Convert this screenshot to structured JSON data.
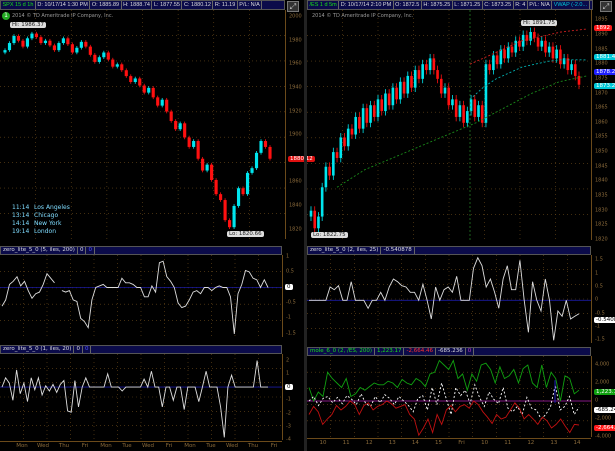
{
  "left": {
    "header": [
      "SPX 15 d 1h",
      "D: 10/17/14 1:30 PM",
      "O: 1885.89",
      "H: 1888.74",
      "L: 1877.55",
      "C: 1880.12",
      "R: 11.19",
      "P/L: N/A"
    ],
    "copyright": "2014 © TD Ameritrade IP Company, Inc.",
    "hi_label": "Hi: 1986.37",
    "lo_label": "Lo: 1820.66",
    "timezones": [
      {
        "time": "11:14",
        "city": "Los Angeles"
      },
      {
        "time": "13:14",
        "city": "Chicago"
      },
      {
        "time": "14:14",
        "city": "New York"
      },
      {
        "time": "19:14",
        "city": "London"
      }
    ],
    "price_ticks": [
      "2000",
      "1980",
      "1960",
      "1940",
      "1920",
      "1900",
      "1860",
      "1840",
      "1820"
    ],
    "last_price": "1880.12",
    "study1": {
      "header": [
        "zero_lite_5_0 (5, iles, 200)",
        "0",
        "0"
      ],
      "ticks": [
        "1",
        "0.5",
        "-0.5",
        "-1",
        "-1.5"
      ],
      "value": "0"
    },
    "study2": {
      "header": [
        "zero_lite_5_0 (1, iles, 20)",
        "0",
        "0"
      ],
      "ticks": [
        "2",
        "1",
        "-1",
        "-2",
        "-3",
        "-4"
      ],
      "value": "0"
    },
    "x_labels": [
      "Mon",
      "Wed",
      "Thu",
      "Fri",
      "Mon",
      "Tue",
      "Wed",
      "Fri",
      "Mon",
      "Tue",
      "Wed",
      "Thu",
      "Fri"
    ]
  },
  "right": {
    "header": [
      "/ES 1 d 5m",
      "D: 10/17/14 2:10 PM",
      "O: 1872.5",
      "H: 1875.25",
      "L: 1871.25",
      "C: 1873.25",
      "R: 4",
      "P/L: N/A",
      "VWAP (-2.0..."
    ],
    "copyright": "2014 © TD Ameritrade IP Company, Inc.",
    "hi_label": "Hi: 1891.75",
    "lo_label": "Lo: 1822.75",
    "price_ticks": [
      "1895",
      "1890",
      "1885",
      "1880",
      "1875",
      "1870",
      "1865",
      "1860",
      "1855",
      "1850",
      "1845",
      "1840",
      "1835",
      "1830",
      "1825",
      "1820"
    ],
    "price_labels": [
      {
        "text": "1892",
        "color": "#ff1a1a"
      },
      {
        "text": "1881.48",
        "color": "#00c8d8"
      },
      {
        "text": "1878.25",
        "color": "#2020ff"
      },
      {
        "text": "1873.25",
        "color": "#00c8d8"
      }
    ],
    "study1": {
      "header": [
        "zero_lite_5_0 (2, iles, 25)",
        "-0.540878",
        ""
      ],
      "ticks": [
        "1.5",
        "1",
        "0.5",
        "0",
        "-0.5",
        "-1",
        "-1.5"
      ],
      "value": "-0.5408"
    },
    "study2": {
      "header": [
        "mole_6_0 (2, /ES, 200)",
        "1,223.17",
        "-2,664.46",
        "-685.236",
        "0"
      ],
      "ticks": [
        "4,000",
        "2,000",
        "0",
        "-2,000",
        "-4,000"
      ],
      "values": [
        {
          "text": "1,223.17",
          "color": "#10a010"
        },
        {
          "text": "-685.24",
          "color": "#ffffff"
        },
        {
          "text": "-2,664.5",
          "color": "#ff1a1a"
        }
      ]
    },
    "x_labels": [
      "10",
      "11",
      "12",
      "13",
      "14",
      "15",
      "Fri",
      "10",
      "11",
      "12",
      "13",
      "14"
    ]
  },
  "colors": {
    "up": "#00e5ee",
    "down": "#ff1010",
    "header_bg": "#0b0b4a",
    "zero_line": "#1a1aa0",
    "mole_zero": "#b020b0",
    "grid": "#6b4a1a"
  },
  "chart_data": [
    {
      "type": "candlestick",
      "title": "SPX 15 d 1h",
      "ylim": [
        1812,
        2006
      ],
      "closes": [
        1972,
        1978,
        1984,
        1980,
        1975,
        1982,
        1986,
        1983,
        1978,
        1980,
        1976,
        1972,
        1978,
        1982,
        1977,
        1970,
        1974,
        1979,
        1975,
        1968,
        1962,
        1966,
        1970,
        1964,
        1958,
        1960,
        1955,
        1950,
        1945,
        1948,
        1942,
        1936,
        1940,
        1932,
        1925,
        1930,
        1920,
        1912,
        1905,
        1910,
        1898,
        1890,
        1895,
        1880,
        1870,
        1875,
        1862,
        1850,
        1845,
        1828,
        1822,
        1840,
        1855,
        1850,
        1868,
        1872,
        1885,
        1895,
        1890,
        1880
      ]
    },
    {
      "type": "line",
      "title": "zero_lite_5_0 (5, iles, 200)",
      "ylim": [
        -1.6,
        1.05
      ],
      "values": [
        -0.6,
        -0.4,
        0.1,
        0.2,
        0.35,
        0.05,
        0.2,
        -0.1,
        -0.35,
        -0.2,
        -0.15,
        0.1,
        0.45,
        0.3,
        0.15,
        null,
        -0.1,
        -0.15,
        -0.1,
        -0.4,
        -0.45,
        -1.0,
        -1.1,
        -1.3,
        -0.4,
        0,
        0.05,
        0.1,
        0,
        0,
        0,
        0,
        0.3,
        0.15,
        0.15,
        0.1,
        0,
        0,
        -0.3,
        -0.3,
        0.05,
        -0.15,
        0.8,
        0.85,
        0.35,
        0.2,
        0,
        -0.5,
        -0.65,
        -0.6,
        -0.4,
        -0.15,
        -0.1,
        -0.2,
        0,
        0,
        -0.1,
        0,
        0.05,
        0,
        0,
        -0.3,
        -1.5,
        -0.2,
        0.1,
        0.55,
        0.5,
        0.3,
        0.25,
        0,
        0.25,
        0
      ]
    },
    {
      "type": "line",
      "title": "zero_lite_5_0 (1, iles, 20)",
      "ylim": [
        -4,
        2.5
      ],
      "values": [
        0,
        0.7,
        0.3,
        -1,
        1.3,
        -0.5,
        0.3,
        -1.1,
        0.7,
        -0.2,
        0.7,
        -0.6,
        0.1,
        -0.3,
        0.2,
        -0.4,
        0.2,
        0.5,
        -1.8,
        -1.9,
        0.5,
        -1.5,
        0,
        0.7,
        0,
        0,
        0,
        0,
        0,
        1,
        0,
        0,
        0,
        -0.3,
        0,
        0,
        0,
        0,
        0,
        0.6,
        0,
        1.2,
        0,
        0,
        -1.5,
        0,
        0,
        -1,
        0,
        0,
        -1.7,
        0,
        0,
        0,
        -1.1,
        0,
        1.2,
        0,
        0,
        0,
        -1.5,
        -3.8,
        0,
        0.9,
        0,
        0,
        0,
        0,
        0,
        0,
        2,
        0,
        0,
        0
      ]
    },
    {
      "type": "candlestick",
      "title": "/ES 1 d 5m",
      "ylim": [
        1820,
        1898.5
      ],
      "closes": [
        1830,
        1824,
        1828,
        1838,
        1845,
        1842,
        1850,
        1848,
        1855,
        1852,
        1858,
        1856,
        1862,
        1858,
        1865,
        1860,
        1866,
        1862,
        1868,
        1864,
        1870,
        1866,
        1872,
        1868,
        1874,
        1870,
        1876,
        1872,
        1878,
        1875,
        1880,
        1878,
        1882,
        1878,
        1875,
        1870,
        1872,
        1866,
        1868,
        1862,
        1866,
        1860,
        1864,
        1868,
        1862,
        1866,
        1860,
        1880,
        1878,
        1883,
        1880,
        1885,
        1882,
        1886,
        1884,
        1888,
        1886,
        1890,
        1888,
        1891,
        1889,
        1886,
        1888,
        1884,
        1886,
        1882,
        1885,
        1880,
        1882,
        1878,
        1880,
        1876,
        1873
      ],
      "vwap_upper": [
        1880,
        1882,
        1884,
        1886,
        1888,
        1889,
        1890,
        1891,
        1891.5,
        1892
      ],
      "vwap_mid": [
        1868,
        1872,
        1875,
        1877,
        1879,
        1880,
        1881,
        1881.5,
        1881.5,
        1881.48
      ],
      "vwap_lower": [
        1838,
        1844,
        1848,
        1852,
        1856,
        1860,
        1865,
        1870,
        1874,
        1876
      ]
    },
    {
      "type": "line",
      "title": "zero_lite_5_0 (2, iles, 25)",
      "ylim": [
        -1.6,
        1.7
      ],
      "values": [
        0,
        0,
        0,
        0,
        0,
        0.5,
        0.4,
        0.55,
        0,
        0,
        0.7,
        0,
        0,
        0,
        -0.3,
        0,
        0,
        0.3,
        0,
        0.5,
        0.8,
        0.7,
        0.55,
        0.5,
        0.3,
        0.3,
        0,
        0.6,
        0,
        -0.7,
        0.5,
        0,
        0.4,
        0.5,
        0.3,
        0.9,
        0,
        0,
        0,
        1.2,
        1.6,
        1.3,
        0.5,
        0.8,
        0.3,
        -0.3,
        0.8,
        1.3,
        0.4,
        0.4,
        1.5,
        0,
        -1.2,
        0.7,
        0,
        -0.4,
        0.8,
        0,
        -1.5,
        -0.4,
        -0.6,
        0,
        -0.7,
        -0.6,
        -0.5
      ]
    },
    {
      "type": "line",
      "title": "mole_6_0 (2, /ES, 200)",
      "ylim": [
        -4000,
        5000
      ],
      "series": [
        {
          "color": "#10a010",
          "values": [
            1500,
            0,
            1000,
            500,
            3200,
            2500,
            2000,
            1500,
            2500,
            500,
            800,
            1500,
            1200,
            1600,
            2000,
            1800,
            1800,
            2200,
            2000,
            1500,
            2400,
            2000,
            1800,
            2500,
            2200,
            1600,
            3000,
            3200,
            4500,
            4000,
            3500,
            4500,
            2500,
            3000,
            1200,
            3000,
            2200,
            4000,
            4200,
            3500,
            2000,
            3800,
            2500,
            2800,
            3500,
            2000,
            3600,
            4000,
            2000,
            1500,
            4000,
            1500,
            3200,
            2500,
            0,
            2800,
            2500,
            800,
            1200
          ]
        },
        {
          "color": "#ffffff",
          "dash": true,
          "values": [
            0,
            500,
            -500,
            300,
            500,
            -200,
            400,
            -300,
            600,
            200,
            -400,
            800,
            -300,
            -600,
            500,
            -200,
            700,
            300,
            -400,
            500,
            0,
            -500,
            -1200,
            300,
            600,
            -1000,
            1500,
            -400,
            2000,
            200,
            -1500,
            1500,
            600,
            1200,
            -300,
            1800,
            400,
            -600,
            1000,
            200,
            -300,
            1500,
            -800,
            -1200,
            -600,
            -1500,
            400,
            -800,
            -1000,
            -2000,
            -1500,
            -600,
            1800,
            -1000,
            -600,
            500,
            -1500,
            -685
          ]
        },
        {
          "color": "#c01010",
          "values": [
            -1500,
            -600,
            -1200,
            -2600,
            -2000,
            -1500,
            -500,
            -1000,
            -600,
            0,
            -400,
            -1500,
            -500,
            -200,
            -1000,
            -600,
            -400,
            0,
            -300,
            -800,
            -600,
            -400,
            -1500,
            -2000,
            -3800,
            -3000,
            -2000,
            -3500,
            -1500,
            -2600,
            -1000,
            -500,
            -1200,
            -600,
            -400,
            -800,
            0,
            -400,
            -1200,
            -1800,
            -2500,
            -1500,
            -2000,
            -1800,
            -1000,
            -200,
            -800,
            -2000,
            -1500,
            -2000,
            -2600,
            -1800,
            -2200,
            -3000,
            -2600,
            -2000,
            -2800,
            -3500,
            -2600,
            -2664
          ]
        }
      ]
    }
  ]
}
